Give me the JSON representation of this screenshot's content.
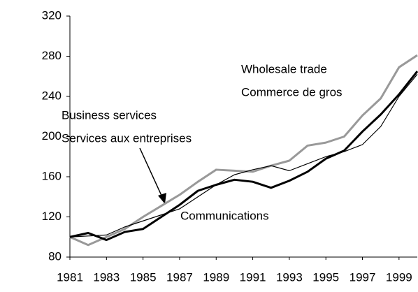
{
  "chart_data": {
    "type": "line",
    "x": [
      1981,
      1982,
      1983,
      1984,
      1985,
      1986,
      1987,
      1988,
      1989,
      1990,
      1991,
      1992,
      1993,
      1994,
      1995,
      1996,
      1997,
      1998,
      1999,
      2000
    ],
    "series": [
      {
        "name": "Wholesale trade",
        "color": "#999999",
        "width": 3,
        "values": [
          100,
          92,
          100,
          108,
          120,
          131,
          142,
          155,
          167,
          166,
          165,
          171,
          176,
          191,
          194,
          200,
          221,
          238,
          269,
          281
        ]
      },
      {
        "name": "Business services",
        "color": "#000000",
        "width": 3,
        "values": [
          100,
          104,
          97,
          105,
          108,
          120,
          132,
          146,
          152,
          157,
          155,
          149,
          156,
          165,
          178,
          186,
          205,
          222,
          242,
          265
        ]
      },
      {
        "name": "Communications",
        "color": "#000000",
        "width": 1.2,
        "values": [
          100,
          101,
          102,
          110,
          116,
          122,
          128,
          140,
          152,
          162,
          167,
          171,
          166,
          173,
          180,
          185,
          192,
          210,
          240,
          262
        ]
      }
    ],
    "annotations": [
      "Wholesale trade",
      "Commerce de gros",
      "Business services",
      "Services aux entreprises",
      "Communications"
    ],
    "xlim": [
      1981,
      2000
    ],
    "xticks": [
      1981,
      1983,
      1985,
      1987,
      1989,
      1991,
      1993,
      1995,
      1997,
      1999
    ],
    "ylim": [
      80,
      320
    ],
    "yticks": [
      80,
      120,
      160,
      200,
      240,
      280,
      320
    ],
    "grid": false
  }
}
